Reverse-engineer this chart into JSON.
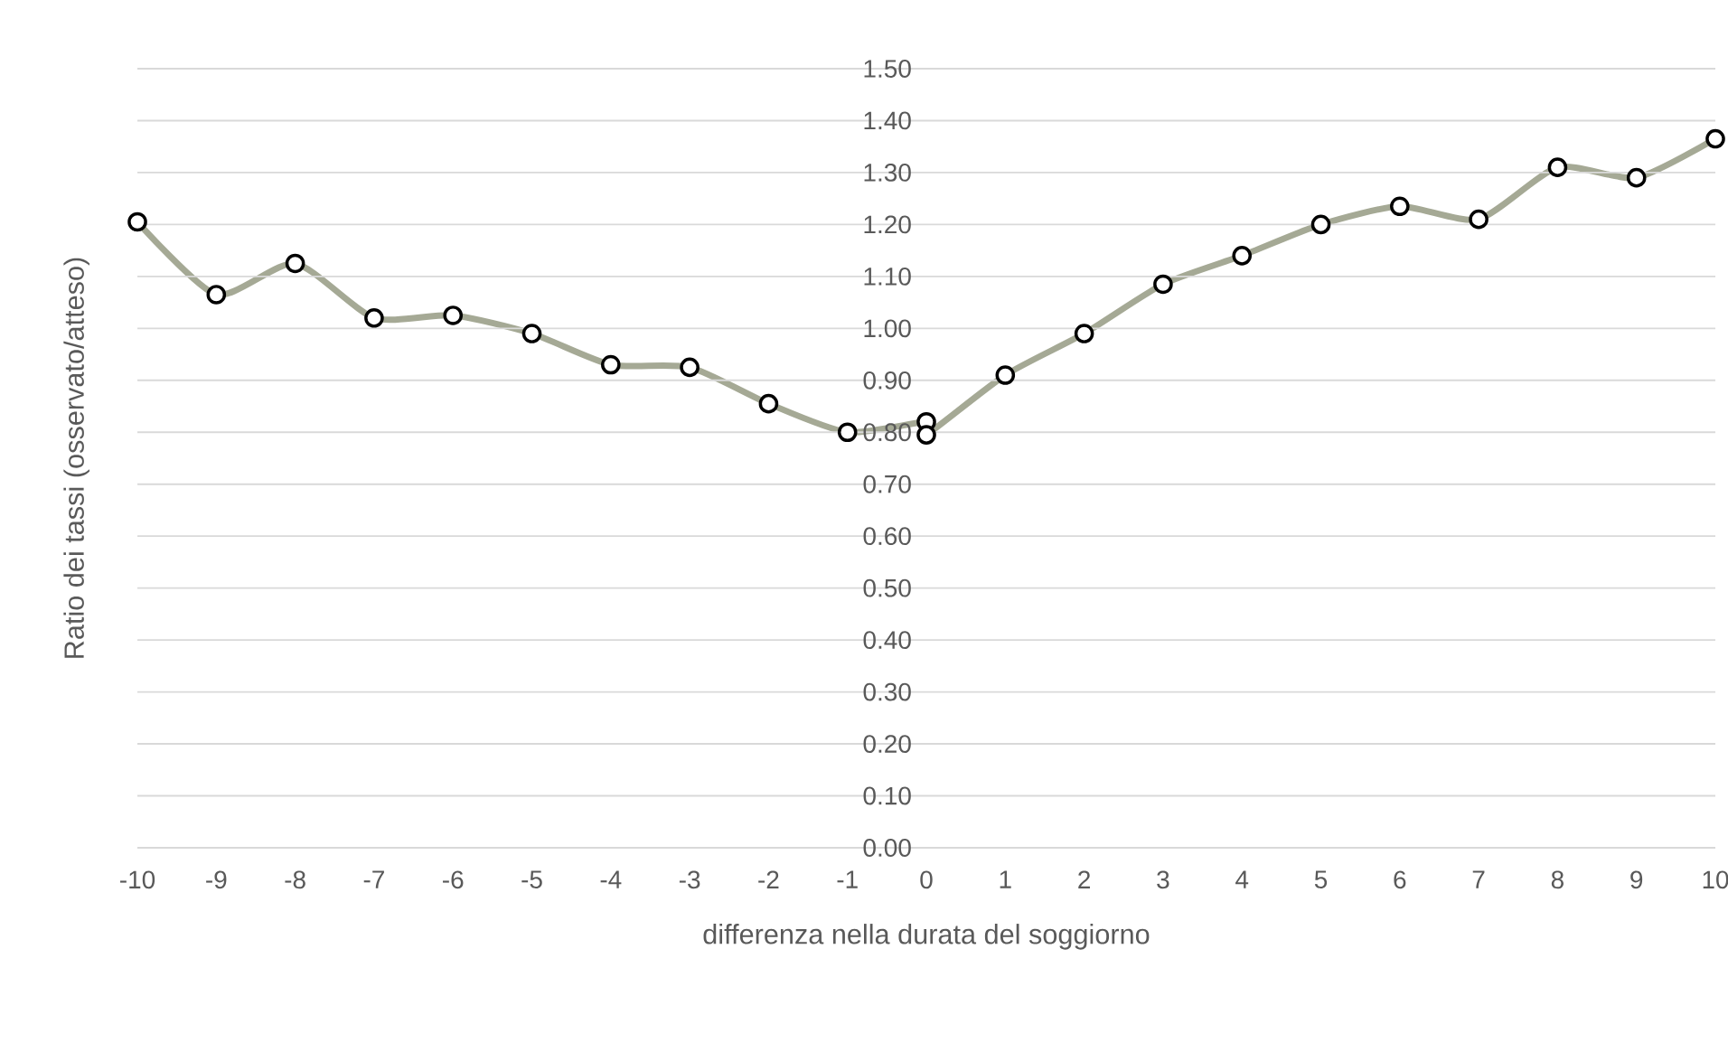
{
  "chart_data": {
    "type": "line",
    "xlabel": "differenza nella durata del soggiorno",
    "ylabel": "Ratio dei tassi (osservato/atteso)",
    "x": [
      -10,
      -9,
      -8,
      -7,
      -6,
      -5,
      -4,
      -3,
      -2,
      -1,
      0,
      0,
      1,
      2,
      3,
      4,
      5,
      6,
      7,
      8,
      9,
      10
    ],
    "series": [
      {
        "color": "#a5a995",
        "values": [
          1.205,
          1.065,
          1.125,
          1.02,
          1.025,
          0.99,
          0.93,
          0.925,
          0.855,
          0.8,
          0.82,
          0.795,
          0.91,
          0.99,
          1.085,
          1.14,
          1.2,
          1.235,
          1.21,
          1.31,
          1.29,
          1.365
        ]
      }
    ],
    "xlim": [
      -10,
      10
    ],
    "ylim": [
      0,
      1.5
    ],
    "xticks": [
      -10,
      -9,
      -8,
      -7,
      -6,
      -5,
      -4,
      -3,
      -2,
      -1,
      0,
      1,
      2,
      3,
      4,
      5,
      6,
      7,
      8,
      9,
      10
    ],
    "yticks": [
      {
        "value": 0,
        "label": "0.00"
      },
      {
        "value": 0.1,
        "label": "0.10"
      },
      {
        "value": 0.2,
        "label": "0.20"
      },
      {
        "value": 0.3,
        "label": "0.30"
      },
      {
        "value": 0.4,
        "label": "0.40"
      },
      {
        "value": 0.5,
        "label": "0.50"
      },
      {
        "value": 0.6,
        "label": "0.60"
      },
      {
        "value": 0.7,
        "label": "0.70"
      },
      {
        "value": 0.8,
        "label": "0.80"
      },
      {
        "value": 0.9,
        "label": "0.90"
      },
      {
        "value": 1.0,
        "label": "1.00"
      },
      {
        "value": 1.1,
        "label": "1.10"
      },
      {
        "value": 1.2,
        "label": "1.20"
      },
      {
        "value": 1.3,
        "label": "1.30"
      },
      {
        "value": 1.4,
        "label": "1.40"
      },
      {
        "value": 1.5,
        "label": "1.50"
      }
    ],
    "grid": "y",
    "marker": "circle",
    "line_style": "solid",
    "legend": false
  }
}
